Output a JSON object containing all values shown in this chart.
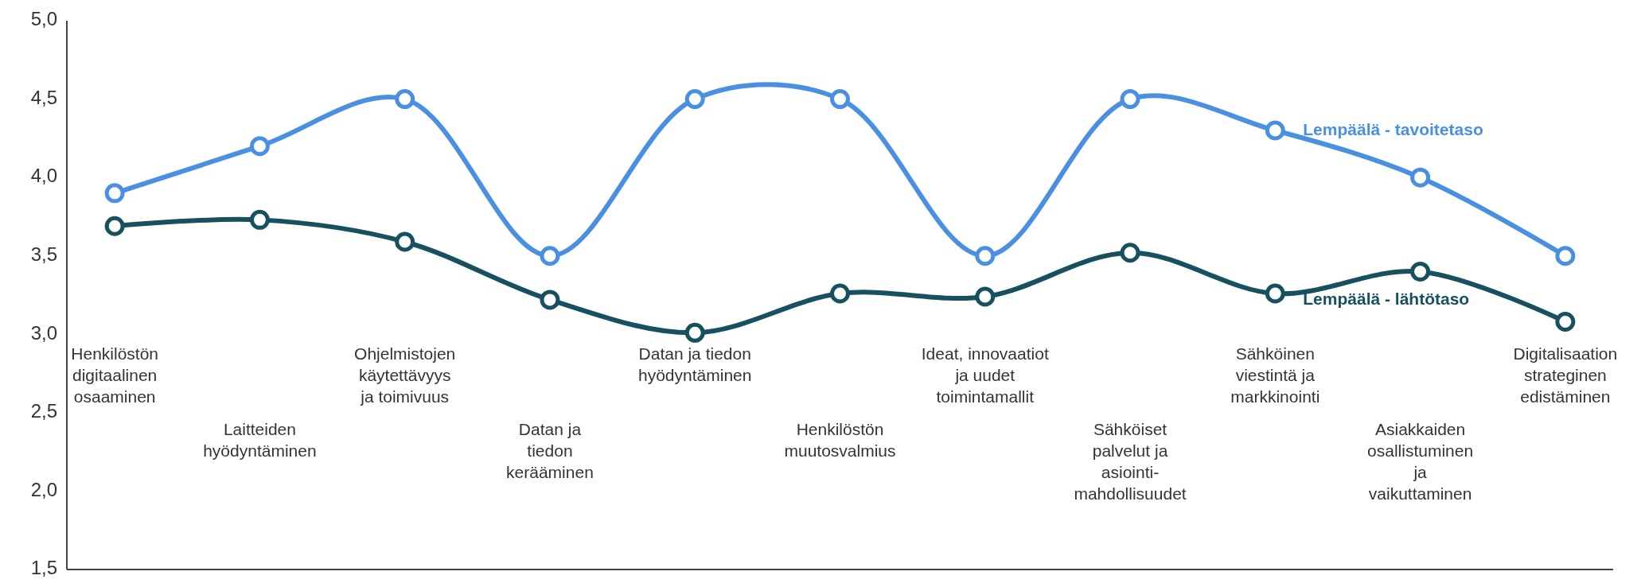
{
  "chart_data": {
    "type": "line",
    "categories": [
      "Henkilöstön\ndigitaalinen\nosaaminen",
      "Laitteiden\nhyödyntäminen",
      "Ohjelmistojen\nkäytettävyys\nja toimivuus",
      "Datan ja\ntiedon\nkerääminen",
      "Datan ja tiedon\nhyödyntäminen",
      "Henkilöstön\nmuutosvalmius",
      "Ideat, innovaatiot\nja uudet\ntoimintamallit",
      "Sähköiset\npalvelut ja\nasiointi-\nmahdollisuudet",
      "Sähköinen\nviestintä ja\nmarkkinointi",
      "Asiakkaiden\nosallistuminen\nja\nvaikuttaminen",
      "Digitalisaation\nstrateginen\nedistäminen"
    ],
    "series": [
      {
        "name": "Lempäälä - tavoitetaso",
        "color": "#4a90e2",
        "values": [
          3.9,
          4.2,
          4.5,
          3.5,
          4.5,
          4.5,
          3.5,
          4.5,
          4.3,
          4.0,
          3.5
        ]
      },
      {
        "name": "Lempäälä - lähtötaso",
        "color": "#17505f",
        "values": [
          3.69,
          3.73,
          3.59,
          3.22,
          3.01,
          3.26,
          3.24,
          3.52,
          3.26,
          3.4,
          3.08
        ]
      }
    ],
    "ylim": [
      1.5,
      5.0
    ],
    "yticks": [
      {
        "value": 1.5,
        "label": "1,5"
      },
      {
        "value": 2.0,
        "label": "2,0"
      },
      {
        "value": 2.5,
        "label": "2,5"
      },
      {
        "value": 3.0,
        "label": "3,0"
      },
      {
        "value": 3.5,
        "label": "3,5"
      },
      {
        "value": 4.0,
        "label": "4,0"
      },
      {
        "value": 4.5,
        "label": "4,5"
      },
      {
        "value": 5.0,
        "label": "5,0"
      }
    ],
    "grid": false,
    "marker": "circle",
    "line_style": "solid"
  }
}
